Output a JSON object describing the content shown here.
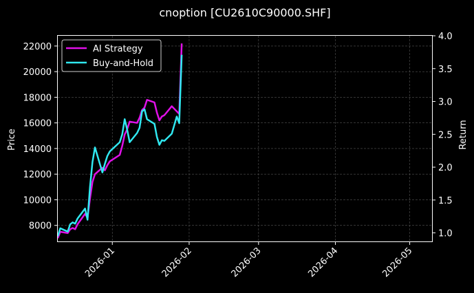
{
  "chart_data": {
    "type": "line",
    "title": "cnoption [CU2610C90000.SHF]",
    "ylabel": "Price",
    "y2label": "Return",
    "xlim": [
      "2025-12-10",
      "2026-05-10"
    ],
    "ylim": [
      6750,
      22800
    ],
    "y2lim": [
      0.87,
      4.0
    ],
    "x_ticks": [
      "2026-01",
      "2026-02",
      "2026-03",
      "2026-04",
      "2026-05"
    ],
    "y_ticks": [
      8000,
      10000,
      12000,
      14000,
      16000,
      18000,
      20000,
      22000
    ],
    "y2_ticks": [
      "1.0",
      "1.5",
      "2.0",
      "2.5",
      "3.0",
      "3.5",
      "4.0"
    ],
    "grid": true,
    "legend_position": "top-left",
    "colors": {
      "background": "#000000",
      "ai": "#e010e8",
      "bh": "#30e8f0",
      "grid": "#555555",
      "axes": "#ffffff"
    },
    "series": [
      {
        "name": "AI Strategy",
        "axis": "left",
        "color": "#e010e8",
        "x": [
          "2025-12-10",
          "2025-12-11",
          "2025-12-14",
          "2025-12-15",
          "2025-12-16",
          "2025-12-17",
          "2025-12-18",
          "2025-12-21",
          "2025-12-22",
          "2025-12-23",
          "2025-12-24",
          "2025-12-25",
          "2025-12-28",
          "2025-12-29",
          "2025-12-30",
          "2025-12-31",
          "2026-01-04",
          "2026-01-05",
          "2026-01-06",
          "2026-01-07",
          "2026-01-08",
          "2026-01-11",
          "2026-01-12",
          "2026-01-13",
          "2026-01-14",
          "2026-01-15",
          "2026-01-18",
          "2026-01-19",
          "2026-01-20",
          "2026-01-21",
          "2026-01-22",
          "2026-01-25",
          "2026-01-26",
          "2026-01-27",
          "2026-01-28",
          "2026-01-29"
        ],
        "values": [
          7000,
          7500,
          7400,
          7700,
          7800,
          7700,
          8100,
          8900,
          8600,
          10100,
          11400,
          12000,
          12500,
          12300,
          12700,
          13000,
          13500,
          14200,
          15100,
          15500,
          16100,
          16000,
          16400,
          17000,
          17200,
          17800,
          17600,
          16800,
          16200,
          16500,
          16600,
          17300,
          17100,
          16900,
          16700,
          22200
        ]
      },
      {
        "name": "Buy-and-Hold",
        "axis": "right",
        "color": "#30e8f0",
        "x": [
          "2025-12-10",
          "2025-12-11",
          "2025-12-14",
          "2025-12-15",
          "2025-12-16",
          "2025-12-17",
          "2025-12-18",
          "2025-12-21",
          "2025-12-22",
          "2025-12-23",
          "2025-12-24",
          "2025-12-25",
          "2025-12-28",
          "2025-12-29",
          "2025-12-30",
          "2025-12-31",
          "2026-01-04",
          "2026-01-05",
          "2026-01-06",
          "2026-01-07",
          "2026-01-08",
          "2026-01-11",
          "2026-01-12",
          "2026-01-13",
          "2026-01-14",
          "2026-01-15",
          "2026-01-18",
          "2026-01-19",
          "2026-01-20",
          "2026-01-21",
          "2026-01-22",
          "2026-01-25",
          "2026-01-26",
          "2026-01-27",
          "2026-01-28",
          "2026-01-29"
        ],
        "values": [
          0.95,
          1.07,
          1.02,
          1.13,
          1.16,
          1.14,
          1.22,
          1.37,
          1.2,
          1.7,
          2.08,
          2.3,
          1.92,
          2.05,
          2.17,
          2.24,
          2.38,
          2.5,
          2.73,
          2.57,
          2.38,
          2.52,
          2.6,
          2.85,
          2.88,
          2.73,
          2.66,
          2.46,
          2.34,
          2.41,
          2.4,
          2.51,
          2.64,
          2.77,
          2.67,
          3.71
        ]
      }
    ]
  }
}
